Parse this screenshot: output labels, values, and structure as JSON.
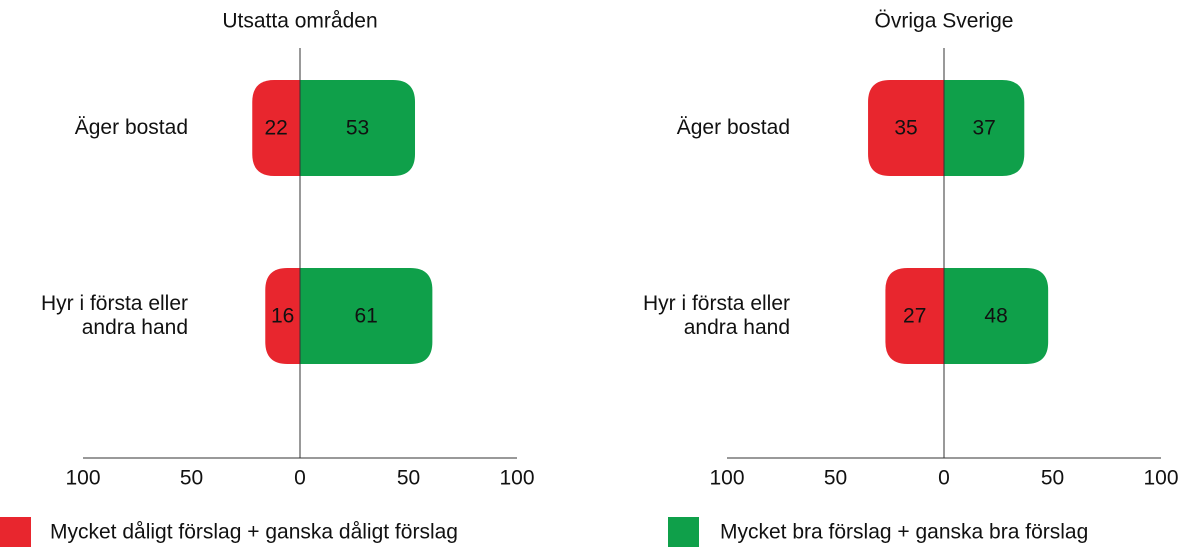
{
  "chart_data": [
    {
      "type": "diverging_bar",
      "title": "Utsatta områden",
      "categories": [
        "Äger bostad",
        "Hyr i första eller\nandra hand"
      ],
      "series": [
        {
          "name": "Mycket dåligt förslag + ganska dåligt förslag",
          "color": "#e8262e",
          "values": [
            -22,
            -16
          ],
          "value_labels": [
            "22",
            "16"
          ]
        },
        {
          "name": "Mycket bra förslag + ganska bra förslag",
          "color": "#0fa04a",
          "values": [
            53,
            61
          ]
        }
      ],
      "xlim": [
        -100,
        100
      ],
      "xticks": [
        {
          "value": -100,
          "label": "100"
        },
        {
          "value": -50,
          "label": "50"
        },
        0,
        50,
        100
      ]
    },
    {
      "type": "diverging_bar",
      "title": "Övriga Sverige",
      "categories": [
        "Äger bostad",
        "Hyr i första eller\nandra hand"
      ],
      "series": [
        {
          "color": "#e8262e",
          "values": [
            -35,
            -27
          ],
          "value_labels": [
            "35",
            "27"
          ]
        },
        {
          "color": "#0fa04a",
          "values": [
            37,
            48
          ]
        }
      ],
      "xlim": [
        -100,
        100
      ],
      "xticks": [
        {
          "value": -100,
          "label": "100"
        },
        {
          "value": -50,
          "label": "50"
        },
        0,
        50,
        100
      ]
    }
  ]
}
